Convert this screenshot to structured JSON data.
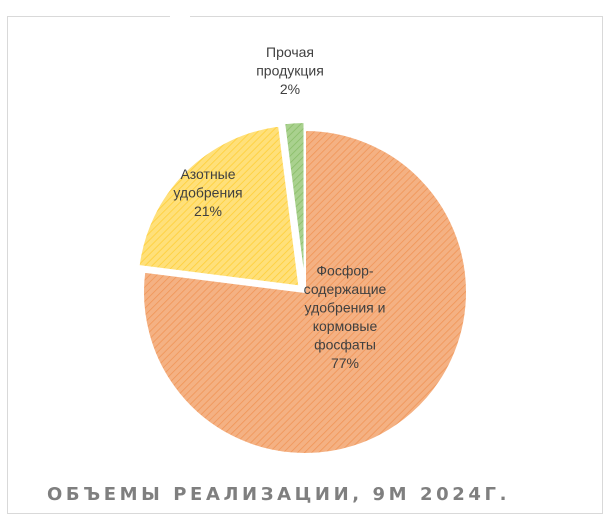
{
  "chart_data": {
    "type": "pie",
    "title": "ОБЪЕМЫ РЕАЛИЗАЦИИ, 9М 2024Г.",
    "slices": [
      {
        "name": "Фосфор-содержащие удобрения и кормовые фосфаты",
        "label_lines": [
          "Фосфор-",
          "содержащие",
          "удобрения и",
          "кормовые",
          "фосфаты",
          "77%"
        ],
        "value": 77,
        "color": "#f4b183",
        "stroke_color": "#ed7d31"
      },
      {
        "name": "Азотные удобрения",
        "label_lines": [
          "Азотные",
          "удобрения",
          "21%"
        ],
        "value": 21,
        "color": "#ffe07a",
        "stroke_color": "#ffc000"
      },
      {
        "name": "Прочая продукция",
        "label_lines": [
          "Прочая",
          "продукция",
          "2%"
        ],
        "value": 2,
        "color": "#a9d18e",
        "stroke_color": "#70ad47"
      }
    ],
    "legend": "none",
    "pattern": "diagonal-hatch"
  }
}
